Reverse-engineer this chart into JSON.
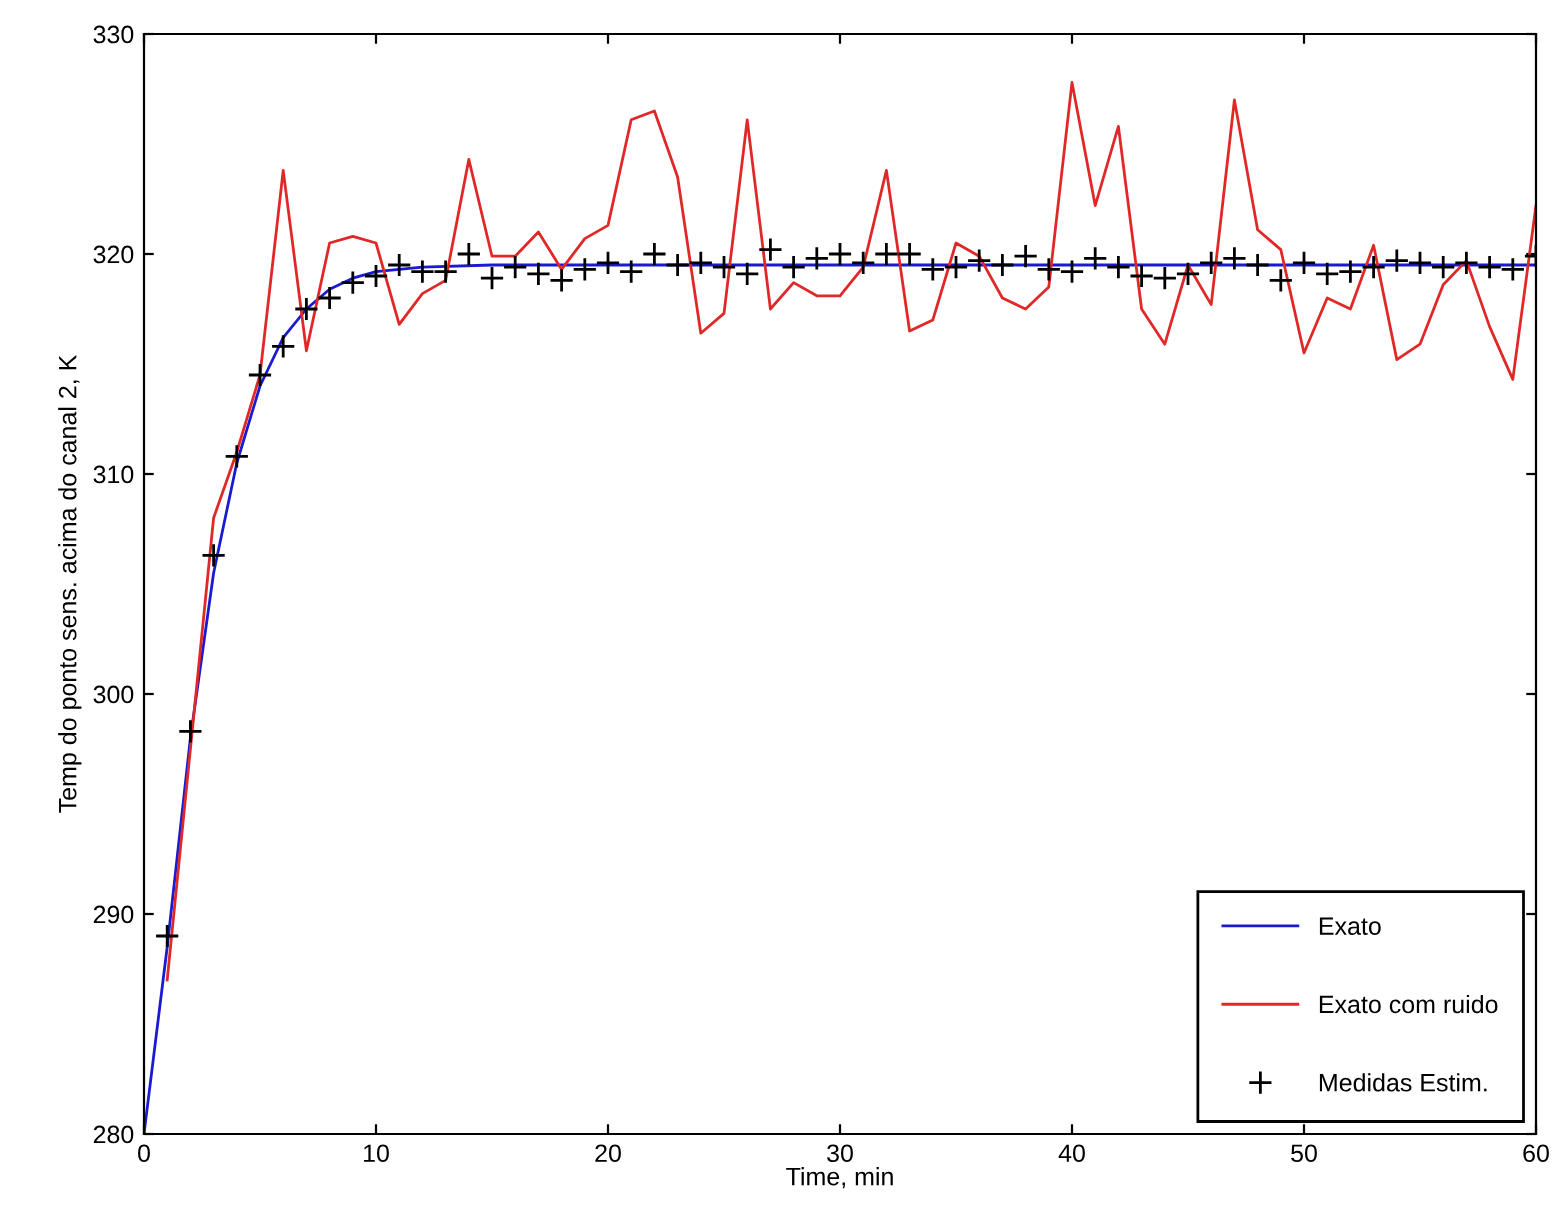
{
  "chart_data": {
    "type": "line",
    "xlabel": "Time, min",
    "ylabel": "Temp do ponto sens. acima do canal 2, K",
    "xlim": [
      0,
      60
    ],
    "ylim": [
      280,
      330
    ],
    "xticks": [
      0,
      10,
      20,
      30,
      40,
      50,
      60
    ],
    "yticks": [
      280,
      290,
      300,
      310,
      320,
      330
    ],
    "grid": false,
    "legend": "bottom right",
    "series": [
      {
        "name": "Exato",
        "color": "#1a1ad0",
        "x": [
          0,
          1,
          2,
          3,
          4,
          5,
          6,
          7,
          8,
          9,
          10,
          12,
          15,
          20,
          60
        ],
        "values": [
          280,
          288.5,
          298,
          305.5,
          310.5,
          314,
          316.2,
          317.5,
          318.4,
          318.9,
          319.2,
          319.4,
          319.5,
          319.5,
          319.5
        ]
      },
      {
        "name": "Exato com ruido",
        "color": "#e02828",
        "x": [
          1,
          2,
          3,
          4,
          5,
          6,
          7,
          8,
          9,
          10,
          11,
          12,
          13,
          14,
          15,
          16,
          17,
          18,
          19,
          20,
          21,
          22,
          23,
          24,
          25,
          26,
          27,
          28,
          29,
          30,
          31,
          32,
          33,
          34,
          35,
          36,
          37,
          38,
          39,
          40,
          41,
          42,
          43,
          44,
          45,
          46,
          47,
          48,
          49,
          50,
          51,
          52,
          53,
          54,
          55,
          56,
          57,
          58,
          59,
          60
        ],
        "values": [
          287,
          297.5,
          308,
          311,
          314.5,
          323.8,
          315.6,
          320.5,
          320.8,
          320.5,
          316.8,
          318.2,
          318.8,
          324.3,
          319.9,
          319.9,
          321,
          319.3,
          320.7,
          321.3,
          326.1,
          326.5,
          323.5,
          316.4,
          317.3,
          326.1,
          317.5,
          318.7,
          318.1,
          318.1,
          319.4,
          323.8,
          316.5,
          317,
          320.5,
          319.9,
          318,
          317.5,
          318.5,
          327.8,
          322.2,
          325.8,
          317.5,
          315.9,
          319.5,
          317.7,
          327,
          321.1,
          320.2,
          315.5,
          318,
          317.5,
          320.4,
          315.2,
          315.9,
          318.6,
          319.7,
          316.7,
          314.3,
          322.2
        ]
      },
      {
        "name": "Medidas Estim.",
        "type": "scatter",
        "color": "#000000",
        "marker": "cross",
        "x": [
          1,
          2,
          3,
          4,
          5,
          6,
          7,
          8,
          9,
          10,
          11,
          12,
          13,
          14,
          15,
          16,
          17,
          18,
          19,
          20,
          21,
          22,
          23,
          24,
          25,
          26,
          27,
          28,
          29,
          30,
          31,
          32,
          33,
          34,
          35,
          36,
          37,
          38,
          39,
          40,
          41,
          42,
          43,
          44,
          45,
          46,
          47,
          48,
          49,
          50,
          51,
          52,
          53,
          54,
          55,
          56,
          57,
          58,
          59,
          60
        ],
        "values": [
          289,
          298.3,
          306.3,
          310.8,
          314.5,
          315.8,
          317.5,
          318,
          318.7,
          319,
          319.5,
          319.2,
          319.2,
          320,
          318.9,
          319.4,
          319.1,
          318.8,
          319.3,
          319.6,
          319.2,
          320,
          319.5,
          319.6,
          319.4,
          319.1,
          320.2,
          319.4,
          319.8,
          320,
          319.6,
          320,
          320,
          319.3,
          319.4,
          319.7,
          319.5,
          319.9,
          319.3,
          319.2,
          319.8,
          319.4,
          319,
          318.9,
          319.1,
          319.6,
          319.8,
          319.5,
          318.8,
          319.6,
          319.1,
          319.2,
          319.4,
          319.7,
          319.6,
          319.4,
          319.6,
          319.4,
          319.3,
          319.9
        ]
      }
    ]
  }
}
